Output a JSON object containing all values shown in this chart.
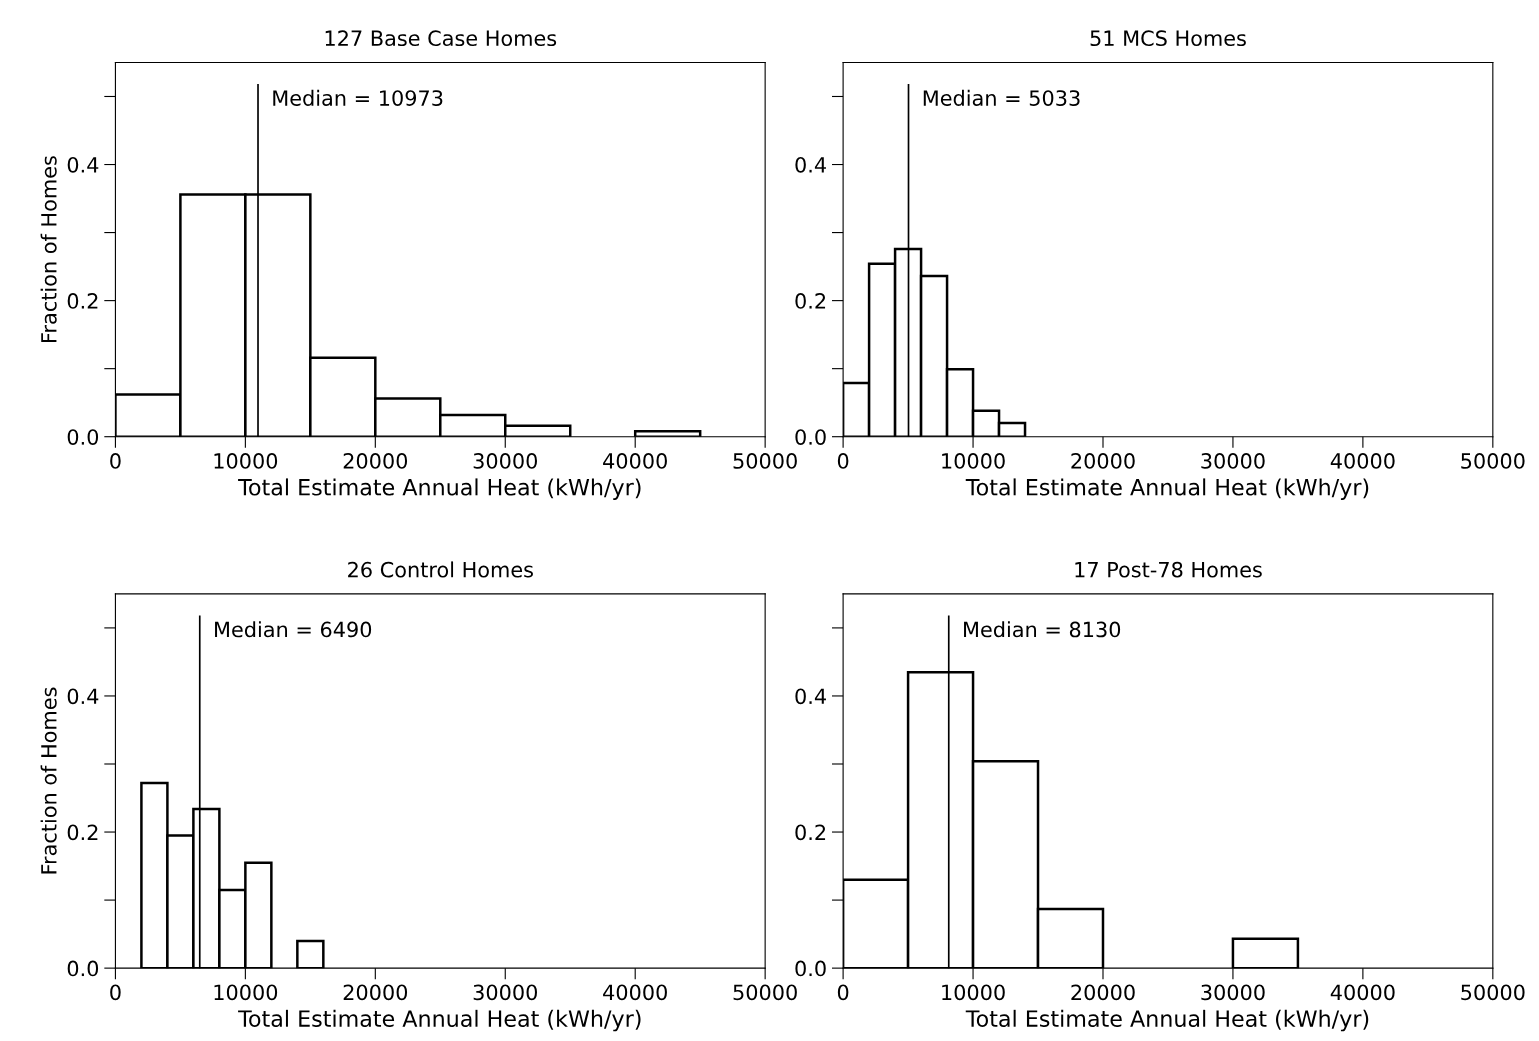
{
  "chart_data": [
    {
      "type": "histogram",
      "title": "127 Base Case Homes",
      "xlabel": "Total Estimate Annual Heat (kWh/yr)",
      "ylabel": "Fraction of Homes",
      "bins": [
        0,
        5000,
        10000,
        15000,
        20000,
        25000,
        30000,
        35000,
        40000,
        45000,
        50000
      ],
      "values": [
        0.062,
        0.356,
        0.356,
        0.116,
        0.056,
        0.032,
        0.016,
        0,
        0.008,
        0
      ],
      "color": "#ffffff",
      "xlim": [
        0,
        50000
      ],
      "xticks": [
        0,
        10000,
        20000,
        30000,
        40000,
        50000
      ],
      "ylim": [
        0,
        0.55
      ],
      "yticks": [
        {
          "value": 0,
          "label": "0.0"
        },
        {
          "value": 0.1,
          "label": null
        },
        {
          "value": 0.2,
          "label": "0.2"
        },
        {
          "value": 0.3,
          "label": null
        },
        {
          "value": 0.4,
          "label": "0.4"
        },
        {
          "value": 0.5,
          "label": null
        }
      ],
      "ref_lines": [
        {
          "axis": "x",
          "value": 10973,
          "label": "Median = 10973"
        }
      ]
    },
    {
      "type": "histogram",
      "title": "51 MCS Homes",
      "xlabel": "Total Estimate Annual Heat (kWh/yr)",
      "bins": [
        0,
        2000,
        4000,
        6000,
        8000,
        10000,
        12000,
        14000
      ],
      "values": [
        0.079,
        0.254,
        0.276,
        0.236,
        0.099,
        0.038,
        0.02
      ],
      "color": "#ffffff",
      "xlim": [
        0,
        50000
      ],
      "xticks": [
        0,
        10000,
        20000,
        30000,
        40000,
        50000
      ],
      "ylim": [
        0,
        0.55
      ],
      "yticks": [
        {
          "value": 0,
          "label": "0.0"
        },
        {
          "value": 0.1,
          "label": null
        },
        {
          "value": 0.2,
          "label": "0.2"
        },
        {
          "value": 0.3,
          "label": null
        },
        {
          "value": 0.4,
          "label": "0.4"
        },
        {
          "value": 0.5,
          "label": null
        }
      ],
      "ref_lines": [
        {
          "axis": "x",
          "value": 5033,
          "label": "Median = 5033"
        }
      ]
    },
    {
      "type": "histogram",
      "title": "26 Control Homes",
      "xlabel": "Total Estimate Annual Heat (kWh/yr)",
      "ylabel": "Fraction of Homes",
      "bins": [
        0,
        2000,
        4000,
        6000,
        8000,
        10000,
        12000,
        14000,
        16000
      ],
      "values": [
        0,
        0.272,
        0.195,
        0.234,
        0.115,
        0.155,
        0,
        0.04
      ],
      "color": "#ffffff",
      "xlim": [
        0,
        50000
      ],
      "xticks": [
        0,
        10000,
        20000,
        30000,
        40000,
        50000
      ],
      "ylim": [
        0,
        0.55
      ],
      "yticks": [
        {
          "value": 0,
          "label": "0.0"
        },
        {
          "value": 0.1,
          "label": null
        },
        {
          "value": 0.2,
          "label": "0.2"
        },
        {
          "value": 0.3,
          "label": null
        },
        {
          "value": 0.4,
          "label": "0.4"
        },
        {
          "value": 0.5,
          "label": null
        }
      ],
      "ref_lines": [
        {
          "axis": "x",
          "value": 6490,
          "label": "Median = 6490"
        }
      ]
    },
    {
      "type": "histogram",
      "title": "17 Post-78 Homes",
      "xlabel": "Total Estimate Annual Heat (kWh/yr)",
      "bins": [
        0,
        5000,
        10000,
        15000,
        20000,
        25000,
        30000,
        35000
      ],
      "values": [
        0.13,
        0.435,
        0.304,
        0.087,
        0,
        0,
        0.043
      ],
      "color": "#ffffff",
      "xlim": [
        0,
        50000
      ],
      "xticks": [
        0,
        10000,
        20000,
        30000,
        40000,
        50000
      ],
      "ylim": [
        0,
        0.55
      ],
      "yticks": [
        {
          "value": 0,
          "label": "0.0"
        },
        {
          "value": 0.1,
          "label": null
        },
        {
          "value": 0.2,
          "label": "0.2"
        },
        {
          "value": 0.3,
          "label": null
        },
        {
          "value": 0.4,
          "label": "0.4"
        },
        {
          "value": 0.5,
          "label": null
        }
      ],
      "ref_lines": [
        {
          "axis": "x",
          "value": 8130,
          "label": "Median = 8130"
        }
      ]
    }
  ]
}
